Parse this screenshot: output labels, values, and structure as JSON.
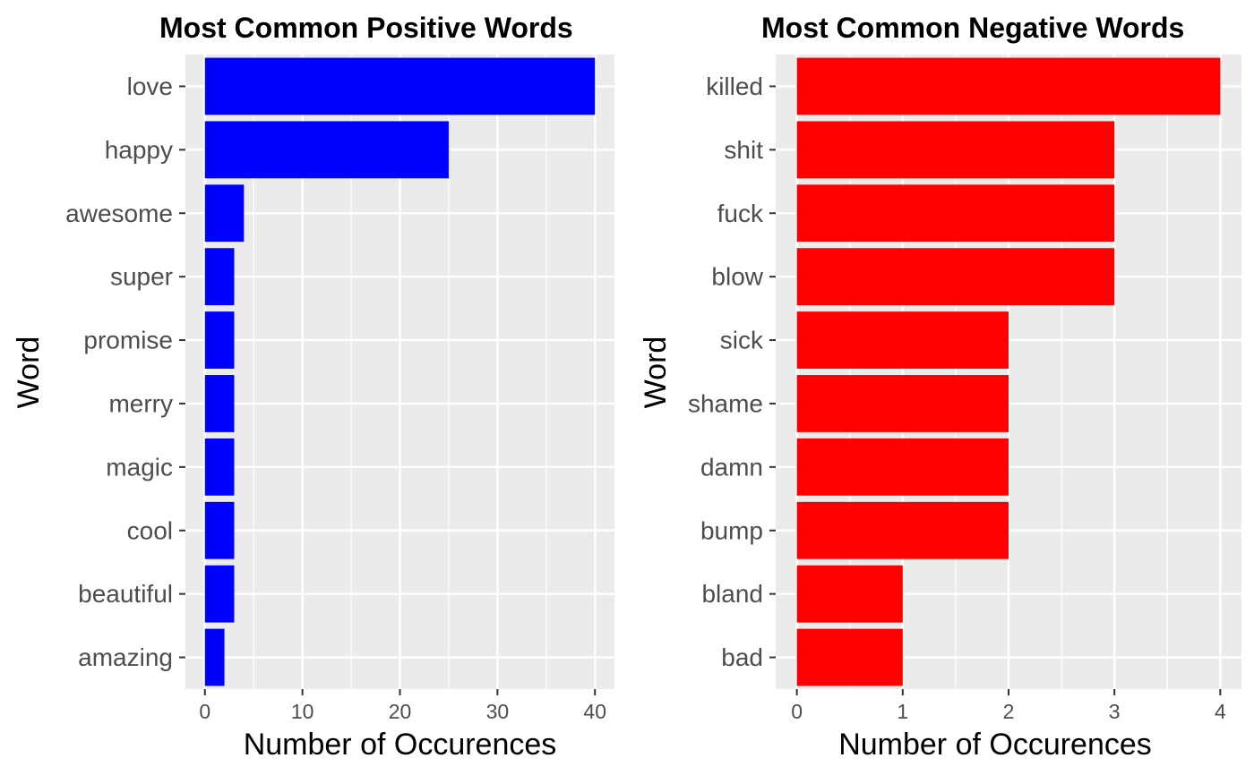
{
  "chart_data": [
    {
      "type": "bar",
      "orientation": "horizontal",
      "title": "Most Common Positive Words",
      "xlabel": "Number of Occurences",
      "ylabel": "Word",
      "color": "#0000ff",
      "categories": [
        "love",
        "happy",
        "awesome",
        "super",
        "promise",
        "merry",
        "magic",
        "cool",
        "beautiful",
        "amazing"
      ],
      "values": [
        40,
        25,
        4,
        3,
        3,
        3,
        3,
        3,
        3,
        2
      ],
      "xticks": [
        0,
        10,
        20,
        30,
        40
      ],
      "xlim": [
        -2,
        42
      ],
      "grid": true
    },
    {
      "type": "bar",
      "orientation": "horizontal",
      "title": "Most Common Negative Words",
      "xlabel": "Number of Occurences",
      "ylabel": "Word",
      "color": "#ff0000",
      "categories": [
        "killed",
        "shit",
        "fuck",
        "blow",
        "sick",
        "shame",
        "damn",
        "bump",
        "bland",
        "bad"
      ],
      "values": [
        4,
        3,
        3,
        3,
        2,
        2,
        2,
        2,
        1,
        1
      ],
      "xticks": [
        0,
        1,
        2,
        3,
        4
      ],
      "xlim": [
        -0.2,
        4.2
      ],
      "grid": true
    }
  ]
}
